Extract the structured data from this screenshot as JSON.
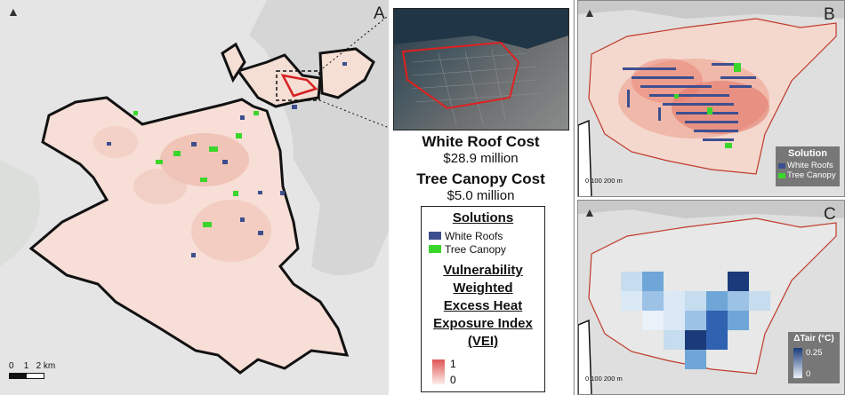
{
  "panel_a": {
    "letter": "A",
    "scale": {
      "labels": [
        "0",
        "1",
        "2 km"
      ]
    },
    "inset_label": "Aerial inset of Eastie study area",
    "white_roof_cost_title": "White Roof Cost",
    "white_roof_cost_value": "$28.9 million",
    "tree_canopy_cost_title": "Tree Canopy Cost",
    "tree_canopy_cost_value": "$5.0 million",
    "legend": {
      "solutions_title": "Solutions",
      "white_roofs": "White Roofs",
      "tree_canopy": "Tree Canopy",
      "vei_title_lines": [
        "Vulnerability",
        "Weighted",
        "Excess Heat",
        "Exposure Index",
        "(VEI)"
      ],
      "vei_max": "1",
      "vei_min": "0"
    }
  },
  "panel_b": {
    "letter": "B",
    "scale": "0   100 200 m",
    "legend_title": "Solution",
    "white_roofs": "White Roofs",
    "tree_canopy": "Tree Canopy"
  },
  "panel_c": {
    "letter": "C",
    "scale": "0   100 200 m",
    "legend_title": "ΔTair (°C)",
    "legend_max": "0.25",
    "legend_min": "0"
  },
  "colors": {
    "white_roofs": "#3d4f8f",
    "tree_canopy": "#3bd62b",
    "vei_high": "#e05555",
    "vei_low": "#fbeeea",
    "boundary_red": "#c0392b",
    "dT_high": "#1b3a7a",
    "dT_low": "#e9f1f9"
  },
  "icons": {
    "north_arrow": "north-arrow-icon"
  }
}
